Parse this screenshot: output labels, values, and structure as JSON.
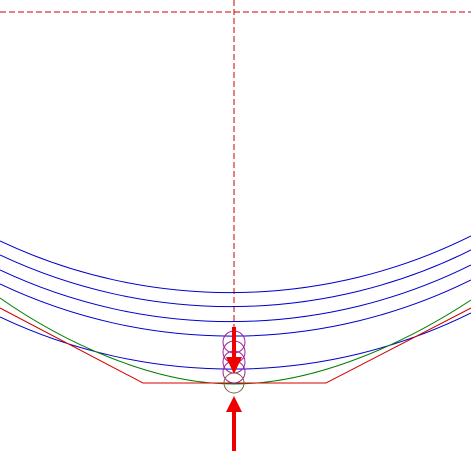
{
  "diagram": {
    "colors": {
      "background": "#ffffff",
      "guide_lines": "#cc0000",
      "arcs": "#0000cc",
      "fit_curve": "#008000",
      "polyline": "#d40000",
      "probe_circles": "#a020a0",
      "contact_circle": "#806040",
      "arrows": "#ee0000"
    },
    "icons": [
      "arrow-down-icon",
      "arrow-up-icon"
    ]
  }
}
